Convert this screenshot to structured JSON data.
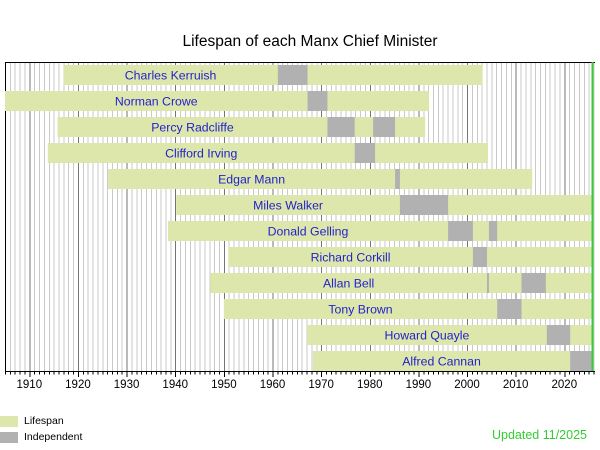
{
  "title": "Lifespan of each Manx Chief Minister",
  "legend": {
    "items": [
      {
        "label": "Lifespan",
        "color": "#dde7ab"
      },
      {
        "label": "Independent",
        "color": "#b1b1b1"
      }
    ]
  },
  "updated_note": {
    "text": "Updated 11/2025",
    "color": "#33cc33"
  },
  "chart_data": {
    "type": "bar",
    "variant": "timeline-gantt",
    "title": "Lifespan of each Manx Chief Minister",
    "xlabel": "",
    "ylabel": "",
    "x_axis": {
      "min": 1905,
      "max": 2026.3,
      "decade_tick_labels": [
        1910,
        1920,
        1930,
        1940,
        1950,
        1960,
        1970,
        1980,
        1990,
        2000,
        2010,
        2020
      ],
      "minor_tick_interval": 1,
      "grid": true
    },
    "now_marker": {
      "year": 2025.85,
      "color": "#33cc33"
    },
    "colors": {
      "lifespan_bar": "#dde7ab",
      "term_bar": "#b1b1b1",
      "name_text": "#2222cc",
      "grid_minor": "#c9c9c9",
      "grid_decade": "#757575",
      "axis": "#000000"
    },
    "legend_position": "bottom-left",
    "series_meaning": {
      "green": "Lifespan",
      "gray": "Independent (term in office)"
    },
    "people": [
      {
        "name": "Charles Kerruish",
        "from": 1917,
        "to": 2003.2,
        "terms": [
          [
            1961.1,
            1967.2
          ]
        ]
      },
      {
        "name": "Norman Crowe",
        "from": 1905,
        "to": 1992.2,
        "terms": [
          [
            1967.2,
            1971.3
          ]
        ]
      },
      {
        "name": "Percy Radcliffe",
        "from": 1915.8,
        "to": 1991.4,
        "terms": [
          [
            1971.3,
            1976.9
          ],
          [
            1980.7,
            1985.2
          ]
        ]
      },
      {
        "name": "Clifford Irving",
        "from": 1913.8,
        "to": 2004.3,
        "terms": [
          [
            1976.9,
            1981.1
          ]
        ]
      },
      {
        "name": "Edgar Mann",
        "from": 1926.2,
        "to": 2013.4,
        "terms": [
          [
            1985.2,
            1986.2
          ]
        ]
      },
      {
        "name": "Miles Walker",
        "from": 1940.2,
        "to": null,
        "terms": [
          [
            1986.2,
            1996.1
          ]
        ]
      },
      {
        "name": "Donald Gelling",
        "from": 1938.5,
        "to": null,
        "terms": [
          [
            1996.1,
            2001.2
          ],
          [
            2004.5,
            2006.2
          ]
        ]
      },
      {
        "name": "Richard Corkill",
        "from": 1950.9,
        "to": null,
        "terms": [
          [
            2001.2,
            2004.1
          ]
        ]
      },
      {
        "name": "Allan Bell",
        "from": 1947.2,
        "to": null,
        "terms": [
          [
            2004.1,
            2004.5
          ],
          [
            2011.2,
            2016.2
          ]
        ]
      },
      {
        "name": "Tony Brown",
        "from": 1950,
        "to": null,
        "terms": [
          [
            2006.2,
            2011.2
          ]
        ]
      },
      {
        "name": "Howard Quayle",
        "from": 1967.1,
        "to": null,
        "terms": [
          [
            2016.4,
            2021.2
          ]
        ]
      },
      {
        "name": "Alfred Cannan",
        "from": 1968.3,
        "to": null,
        "terms": [
          [
            2021.2,
            null
          ]
        ]
      }
    ]
  }
}
